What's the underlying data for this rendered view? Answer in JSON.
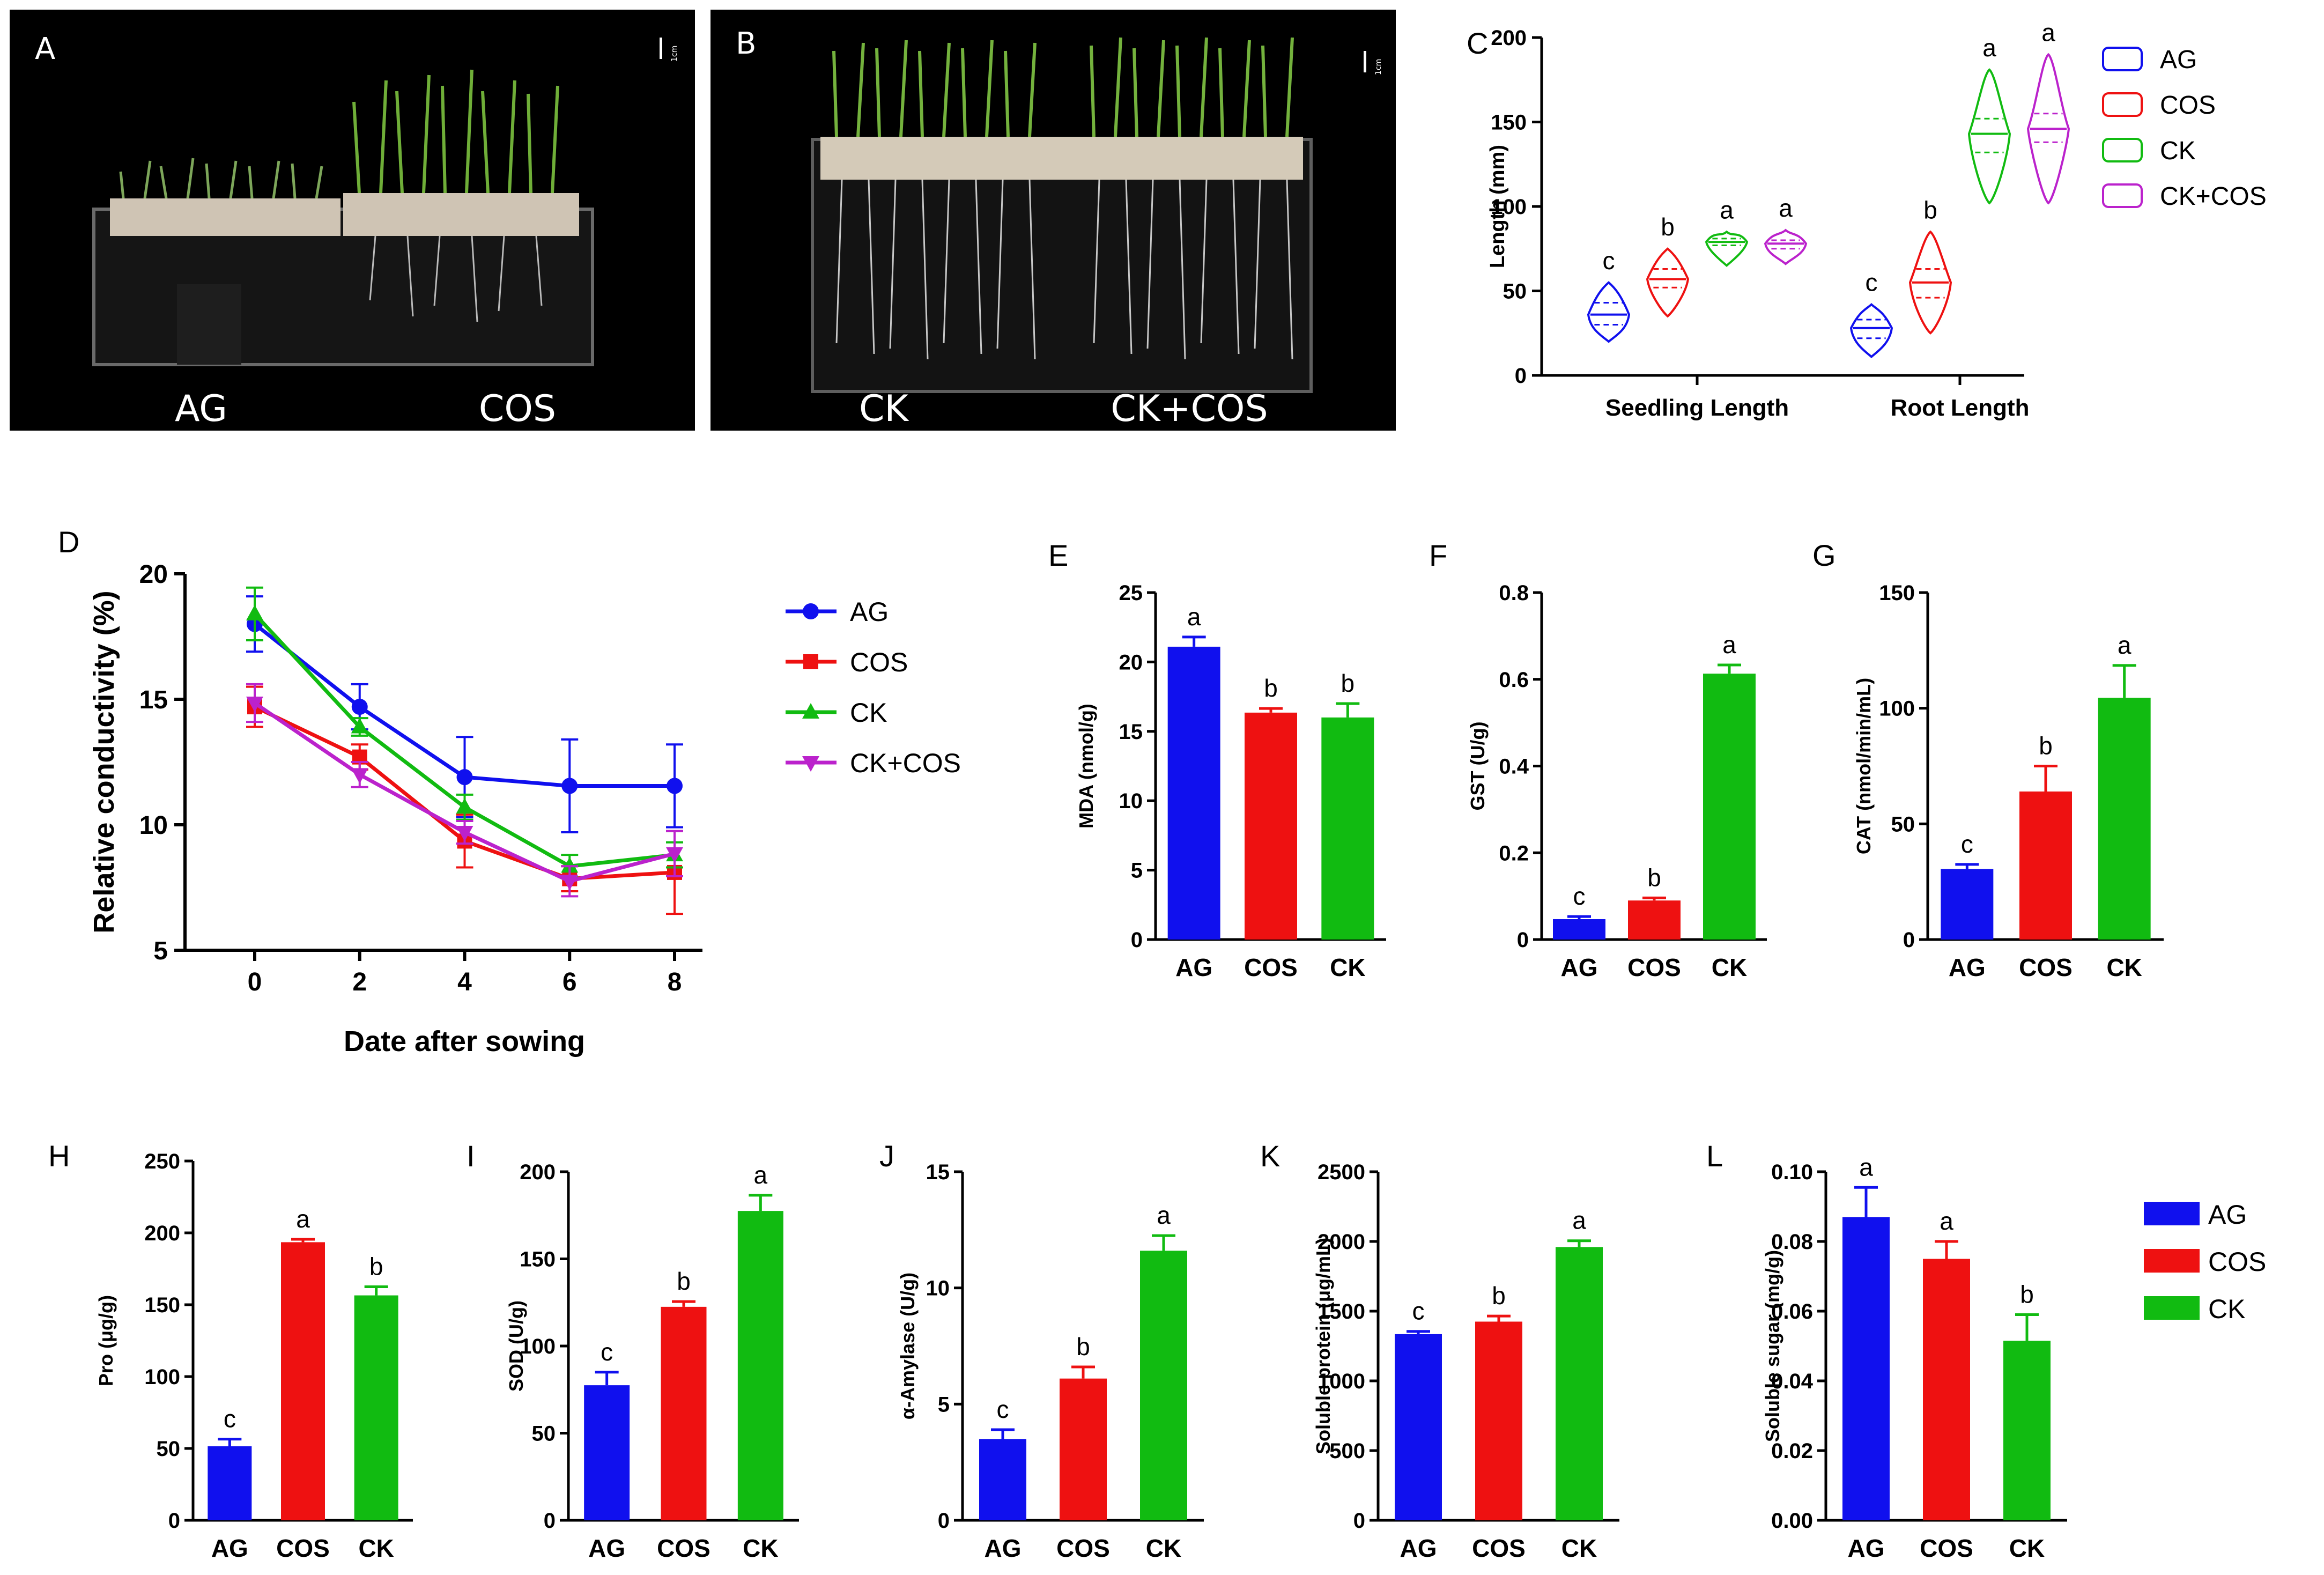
{
  "colors": {
    "AG": "#1010ee",
    "COS": "#ee1111",
    "CK": "#11bb11",
    "CK+COS": "#bb22cc",
    "axis": "#000000",
    "photo_bg": "#000000"
  },
  "photos": [
    {
      "panel": "A",
      "scale": "1cm",
      "labels": [
        "AG",
        "COS"
      ]
    },
    {
      "panel": "B",
      "scale": "1cm",
      "labels": [
        "CK",
        "CK+COS"
      ]
    }
  ],
  "chart_data": [
    {
      "panel": "C",
      "type": "violin",
      "ylabel": "Length (mm)",
      "ylim": [
        0,
        200
      ],
      "yticks": [
        "0",
        "50",
        "100",
        "150",
        "200"
      ],
      "categories": [
        "Seedling Length",
        "Root Length"
      ],
      "legend": [
        "AG",
        "COS",
        "CK",
        "CK+COS"
      ],
      "series": [
        {
          "name": "AG",
          "values": [
            {
              "median": 36,
              "q1": 30,
              "q3": 43,
              "min": 20,
              "max": 55
            },
            {
              "median": 28,
              "q1": 22,
              "q3": 33,
              "min": 11,
              "max": 42
            }
          ],
          "letters": [
            "c",
            "c"
          ]
        },
        {
          "name": "COS",
          "values": [
            {
              "median": 57,
              "q1": 52,
              "q3": 63,
              "min": 35,
              "max": 75
            },
            {
              "median": 55,
              "q1": 46,
              "q3": 63,
              "min": 25,
              "max": 85
            }
          ],
          "letters": [
            "b",
            "b"
          ]
        },
        {
          "name": "CK",
          "values": [
            {
              "median": 79,
              "q1": 77,
              "q3": 81,
              "min": 65,
              "max": 85
            },
            {
              "median": 143,
              "q1": 132,
              "q3": 152,
              "min": 102,
              "max": 181
            }
          ],
          "letters": [
            "a",
            "a"
          ]
        },
        {
          "name": "CK+COS",
          "values": [
            {
              "median": 78,
              "q1": 75,
              "q3": 80,
              "min": 66,
              "max": 86
            },
            {
              "median": 146,
              "q1": 138,
              "q3": 155,
              "min": 102,
              "max": 190
            }
          ],
          "letters": [
            "a",
            "a"
          ]
        }
      ]
    },
    {
      "panel": "D",
      "type": "line",
      "xlabel": "Date after sowing",
      "ylabel": "Relative conductivity (%)",
      "x": [
        0,
        2,
        4,
        6,
        8
      ],
      "xticks": [
        "0",
        "2",
        "4",
        "6",
        "8"
      ],
      "ylim": [
        5,
        20
      ],
      "yticks": [
        "5",
        "10",
        "15",
        "20"
      ],
      "series": [
        {
          "name": "AG",
          "values": [
            18.0,
            14.7,
            11.9,
            11.55,
            11.55
          ],
          "errors": [
            1.1,
            0.9,
            1.6,
            1.85,
            1.65
          ],
          "marker": "circle"
        },
        {
          "name": "COS",
          "values": [
            14.7,
            12.7,
            9.35,
            7.85,
            8.1
          ],
          "errors": [
            0.8,
            0.5,
            1.05,
            0.5,
            1.65
          ],
          "marker": "square"
        },
        {
          "name": "CK",
          "values": [
            18.4,
            13.9,
            10.7,
            8.35,
            8.8
          ],
          "errors": [
            1.05,
            0.35,
            0.5,
            0.45,
            0.5
          ],
          "marker": "triangle-up"
        },
        {
          "name": "CK+COS",
          "values": [
            14.85,
            12.0,
            9.7,
            7.75,
            8.85
          ],
          "errors": [
            0.75,
            0.5,
            0.45,
            0.6,
            0.9
          ],
          "marker": "triangle-down"
        }
      ]
    },
    {
      "panel": "E",
      "type": "bar",
      "ylabel": "MDA (nmol/g)",
      "categories": [
        "AG",
        "COS",
        "CK"
      ],
      "values": [
        21.1,
        16.35,
        16.0
      ],
      "errors": [
        0.7,
        0.3,
        1.0
      ],
      "letters": [
        "a",
        "b",
        "b"
      ],
      "ylim": [
        0,
        25
      ],
      "yticks": [
        "0",
        "5",
        "10",
        "15",
        "20",
        "25"
      ]
    },
    {
      "panel": "F",
      "type": "bar",
      "ylabel": "GST (U/g)",
      "categories": [
        "AG",
        "COS",
        "CK"
      ],
      "values": [
        0.047,
        0.09,
        0.613
      ],
      "errors": [
        0.006,
        0.006,
        0.02
      ],
      "letters": [
        "c",
        "b",
        "a"
      ],
      "ylim": [
        0,
        0.8
      ],
      "yticks": [
        "0",
        "0.2",
        "0.4",
        "0.6",
        "0.8"
      ]
    },
    {
      "panel": "G",
      "type": "bar",
      "ylabel": "CAT (nmol/min/mL)",
      "categories": [
        "AG",
        "COS",
        "CK"
      ],
      "values": [
        30.5,
        64.0,
        104.5
      ],
      "errors": [
        2.0,
        11.0,
        14.0
      ],
      "letters": [
        "c",
        "b",
        "a"
      ],
      "ylim": [
        0,
        150
      ],
      "yticks": [
        "0",
        "50",
        "100",
        "150"
      ]
    },
    {
      "panel": "H",
      "type": "bar",
      "ylabel": "Pro (μg/g)",
      "categories": [
        "AG",
        "COS",
        "CK"
      ],
      "values": [
        51.5,
        193.5,
        156.5
      ],
      "errors": [
        5.0,
        2.0,
        6.0
      ],
      "letters": [
        "c",
        "a",
        "b"
      ],
      "ylim": [
        0,
        250
      ],
      "yticks": [
        "0",
        "50",
        "100",
        "150",
        "200",
        "250"
      ]
    },
    {
      "panel": "I",
      "type": "bar",
      "ylabel": "SOD (U/g)",
      "categories": [
        "AG",
        "COS",
        "CK"
      ],
      "values": [
        77.5,
        122.5,
        177.5
      ],
      "errors": [
        7.5,
        3.0,
        9.0
      ],
      "letters": [
        "c",
        "b",
        "a"
      ],
      "ylim": [
        0,
        200
      ],
      "yticks": [
        "0",
        "50",
        "100",
        "150",
        "200"
      ]
    },
    {
      "panel": "J",
      "type": "bar",
      "ylabel": "α-Amylase (U/g)",
      "categories": [
        "AG",
        "COS",
        "CK"
      ],
      "values": [
        3.5,
        6.1,
        11.6
      ],
      "errors": [
        0.4,
        0.5,
        0.65
      ],
      "letters": [
        "c",
        "b",
        "a"
      ],
      "ylim": [
        0,
        15
      ],
      "yticks": [
        "0",
        "5",
        "10",
        "15"
      ]
    },
    {
      "panel": "K",
      "type": "bar",
      "ylabel": "Soluble protein (μg/mL)",
      "categories": [
        "AG",
        "COS",
        "CK"
      ],
      "values": [
        1335,
        1425,
        1960
      ],
      "errors": [
        20,
        40,
        45
      ],
      "letters": [
        "c",
        "b",
        "a"
      ],
      "ylim": [
        0,
        2500
      ],
      "yticks": [
        "0",
        "500",
        "1000",
        "1500",
        "2000",
        "2500"
      ]
    },
    {
      "panel": "L",
      "type": "bar",
      "ylabel": "Soluble sugar (mg/g)",
      "categories": [
        "AG",
        "COS",
        "CK"
      ],
      "values": [
        0.087,
        0.075,
        0.0515
      ],
      "errors": [
        0.0085,
        0.005,
        0.0075
      ],
      "letters": [
        "a",
        "a",
        "b"
      ],
      "ylim": [
        0,
        0.1
      ],
      "yticks": [
        "0.00",
        "0.02",
        "0.04",
        "0.06",
        "0.08",
        "0.10"
      ]
    }
  ],
  "legends": {
    "line": [
      "AG",
      "COS",
      "CK",
      "CK+COS"
    ],
    "bar": [
      "AG",
      "COS",
      "CK"
    ]
  }
}
